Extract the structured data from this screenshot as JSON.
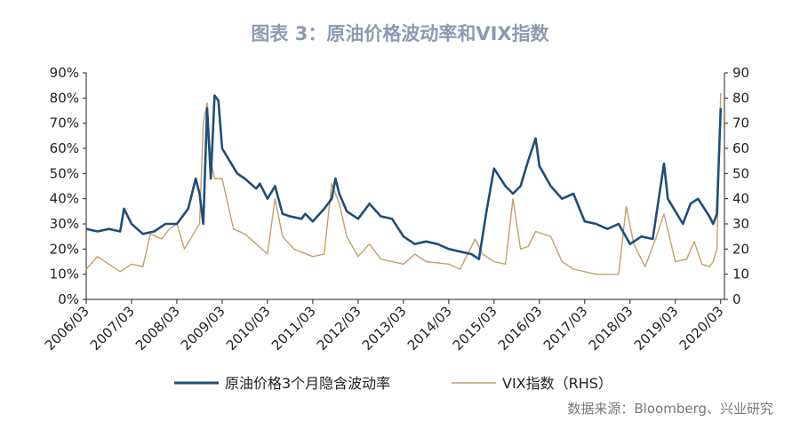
{
  "title": "图表 3：原油价格波动率和VIX指数",
  "source": "数据来源：Bloomberg、兴业研究",
  "colors": {
    "oil": "#1f4e79",
    "vix": "#c4a06a",
    "axis": "#222222",
    "title": "#8c9bb0"
  },
  "chart_data": {
    "type": "line",
    "x_start": "2006/03",
    "x_end": "2020/04",
    "x_tick_labels": [
      "2006/03",
      "2007/03",
      "2008/03",
      "2009/03",
      "2010/03",
      "2011/03",
      "2012/03",
      "2013/03",
      "2014/03",
      "2015/03",
      "2016/03",
      "2017/03",
      "2018/03",
      "2019/03",
      "2020/03"
    ],
    "y_left": {
      "min": 0,
      "max": 90,
      "ticks": [
        "0%",
        "10%",
        "20%",
        "30%",
        "40%",
        "50%",
        "60%",
        "70%",
        "80%",
        "90%"
      ]
    },
    "y_right": {
      "min": 0,
      "max": 90,
      "ticks": [
        "0",
        "10",
        "20",
        "30",
        "40",
        "50",
        "60",
        "70",
        "80",
        "90"
      ]
    },
    "grid": false,
    "legend_position": "bottom",
    "series": [
      {
        "name": "原油价格3个月隐含波动率",
        "axis": "left",
        "unit": "%",
        "points": [
          [
            "2006/03",
            28
          ],
          [
            "2006/06",
            27
          ],
          [
            "2006/09",
            28
          ],
          [
            "2006/12",
            27
          ],
          [
            "2007/01",
            36
          ],
          [
            "2007/03",
            30
          ],
          [
            "2007/06",
            26
          ],
          [
            "2007/09",
            27
          ],
          [
            "2007/12",
            30
          ],
          [
            "2008/03",
            30
          ],
          [
            "2008/06",
            36
          ],
          [
            "2008/08",
            48
          ],
          [
            "2008/09",
            42
          ],
          [
            "2008/10",
            30
          ],
          [
            "2008/11",
            76
          ],
          [
            "2008/12",
            48
          ],
          [
            "2009/01",
            81
          ],
          [
            "2009/02",
            79
          ],
          [
            "2009/03",
            60
          ],
          [
            "2009/05",
            55
          ],
          [
            "2009/07",
            50
          ],
          [
            "2009/09",
            48
          ],
          [
            "2009/12",
            44
          ],
          [
            "2010/01",
            46
          ],
          [
            "2010/03",
            40
          ],
          [
            "2010/05",
            45
          ],
          [
            "2010/07",
            34
          ],
          [
            "2010/09",
            33
          ],
          [
            "2010/12",
            32
          ],
          [
            "2011/01",
            34
          ],
          [
            "2011/03",
            31
          ],
          [
            "2011/06",
            36
          ],
          [
            "2011/08",
            40
          ],
          [
            "2011/09",
            48
          ],
          [
            "2011/10",
            42
          ],
          [
            "2011/12",
            35
          ],
          [
            "2012/03",
            32
          ],
          [
            "2012/06",
            38
          ],
          [
            "2012/09",
            33
          ],
          [
            "2012/12",
            32
          ],
          [
            "2013/03",
            25
          ],
          [
            "2013/06",
            22
          ],
          [
            "2013/09",
            23
          ],
          [
            "2013/12",
            22
          ],
          [
            "2014/03",
            20
          ],
          [
            "2014/06",
            19
          ],
          [
            "2014/09",
            18
          ],
          [
            "2014/11",
            16
          ],
          [
            "2015/01",
            35
          ],
          [
            "2015/03",
            52
          ],
          [
            "2015/06",
            45
          ],
          [
            "2015/08",
            42
          ],
          [
            "2015/10",
            45
          ],
          [
            "2015/12",
            55
          ],
          [
            "2016/02",
            64
          ],
          [
            "2016/03",
            53
          ],
          [
            "2016/06",
            45
          ],
          [
            "2016/09",
            40
          ],
          [
            "2016/12",
            42
          ],
          [
            "2017/03",
            31
          ],
          [
            "2017/06",
            30
          ],
          [
            "2017/09",
            28
          ],
          [
            "2017/12",
            30
          ],
          [
            "2018/03",
            22
          ],
          [
            "2018/06",
            25
          ],
          [
            "2018/09",
            24
          ],
          [
            "2018/12",
            54
          ],
          [
            "2019/01",
            40
          ],
          [
            "2019/03",
            35
          ],
          [
            "2019/05",
            30
          ],
          [
            "2019/07",
            38
          ],
          [
            "2019/09",
            40
          ],
          [
            "2019/12",
            33
          ],
          [
            "2020/01",
            30
          ],
          [
            "2020/02",
            34
          ],
          [
            "2020/03",
            76
          ]
        ]
      },
      {
        "name": "VIX指数（RHS）",
        "axis": "right",
        "unit": "",
        "points": [
          [
            "2006/03",
            12
          ],
          [
            "2006/06",
            17
          ],
          [
            "2006/09",
            14
          ],
          [
            "2006/12",
            11
          ],
          [
            "2007/03",
            14
          ],
          [
            "2007/06",
            13
          ],
          [
            "2007/08",
            26
          ],
          [
            "2007/11",
            24
          ],
          [
            "2008/01",
            28
          ],
          [
            "2008/03",
            30
          ],
          [
            "2008/05",
            20
          ],
          [
            "2008/07",
            25
          ],
          [
            "2008/09",
            30
          ],
          [
            "2008/10",
            70
          ],
          [
            "2008/11",
            78
          ],
          [
            "2008/12",
            55
          ],
          [
            "2009/01",
            48
          ],
          [
            "2009/03",
            48
          ],
          [
            "2009/06",
            28
          ],
          [
            "2009/09",
            26
          ],
          [
            "2009/12",
            22
          ],
          [
            "2010/03",
            18
          ],
          [
            "2010/05",
            40
          ],
          [
            "2010/07",
            25
          ],
          [
            "2010/10",
            20
          ],
          [
            "2011/03",
            17
          ],
          [
            "2011/06",
            18
          ],
          [
            "2011/08",
            46
          ],
          [
            "2011/10",
            38
          ],
          [
            "2011/12",
            25
          ],
          [
            "2012/03",
            17
          ],
          [
            "2012/06",
            22
          ],
          [
            "2012/09",
            16
          ],
          [
            "2013/03",
            14
          ],
          [
            "2013/06",
            18
          ],
          [
            "2013/09",
            15
          ],
          [
            "2014/03",
            14
          ],
          [
            "2014/06",
            12
          ],
          [
            "2014/10",
            24
          ],
          [
            "2014/12",
            18
          ],
          [
            "2015/03",
            15
          ],
          [
            "2015/06",
            14
          ],
          [
            "2015/08",
            40
          ],
          [
            "2015/10",
            20
          ],
          [
            "2015/12",
            21
          ],
          [
            "2016/02",
            27
          ],
          [
            "2016/06",
            25
          ],
          [
            "2016/09",
            15
          ],
          [
            "2016/12",
            12
          ],
          [
            "2017/03",
            11
          ],
          [
            "2017/06",
            10
          ],
          [
            "2017/09",
            10
          ],
          [
            "2017/12",
            10
          ],
          [
            "2018/02",
            37
          ],
          [
            "2018/04",
            22
          ],
          [
            "2018/07",
            13
          ],
          [
            "2018/10",
            25
          ],
          [
            "2018/12",
            34
          ],
          [
            "2019/03",
            15
          ],
          [
            "2019/06",
            16
          ],
          [
            "2019/08",
            23
          ],
          [
            "2019/10",
            14
          ],
          [
            "2019/12",
            13
          ],
          [
            "2020/01",
            15
          ],
          [
            "2020/02",
            20
          ],
          [
            "2020/03",
            82
          ]
        ]
      }
    ]
  }
}
